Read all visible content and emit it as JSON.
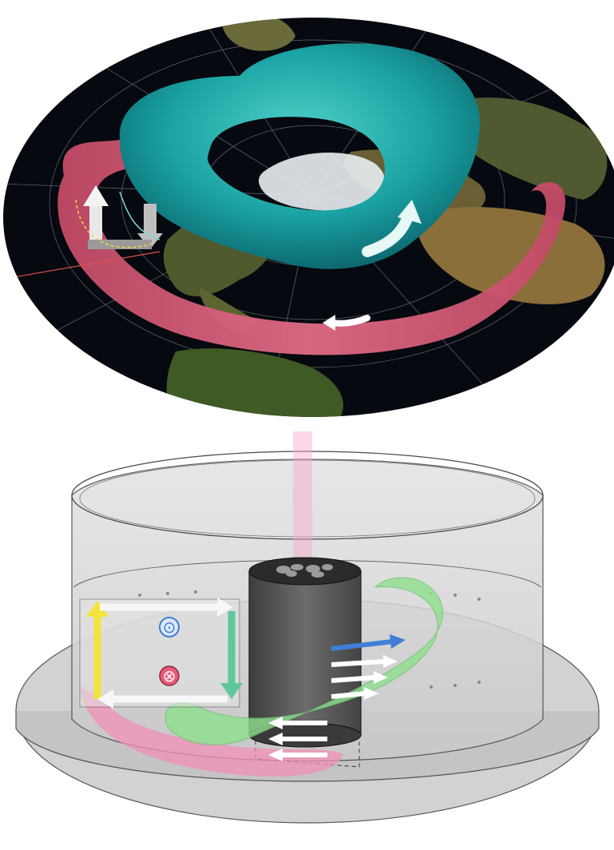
{
  "figure": {
    "top_panel": {
      "kind": "globe-visualization",
      "projection": "polar",
      "features": [
        "continents",
        "polar-ice",
        "jet-stream-torus",
        "ocean-current-band"
      ],
      "colors": {
        "ocean": "#06090f",
        "land": "#5a5a2a",
        "ice": "#e8eef2",
        "torus": "#1aa3a3",
        "band": "#d9607a",
        "arrow": "#ffffff"
      }
    },
    "bottom_panel": {
      "kind": "rotating-tank-sketch",
      "symbols": {
        "out_of_page": "⊙",
        "into_page": "⊗"
      },
      "colors": {
        "tank": "#d6d6d6",
        "cylinder": "#555555",
        "yellow_arrow": "#f2e43a",
        "green_arrow": "#5fc79a",
        "blue_arrow": "#3f7fd6",
        "green_plume": "#8fe08f",
        "pink_plume": "#f28fb8",
        "pink_beam": "#f5a8d0"
      }
    }
  }
}
